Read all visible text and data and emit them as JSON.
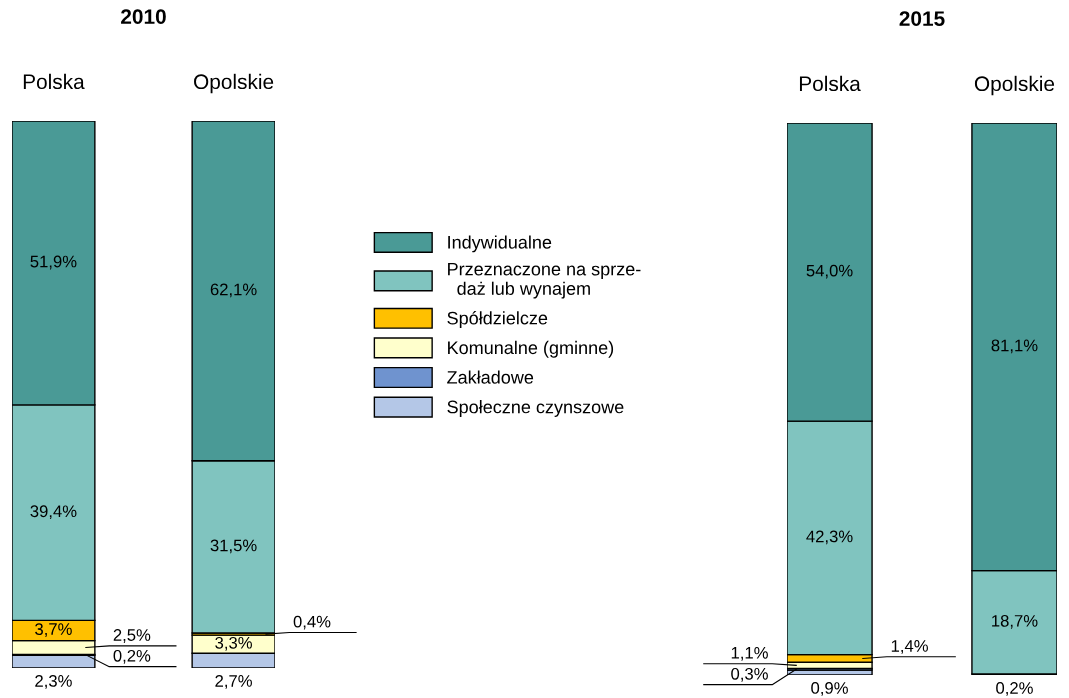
{
  "chart_data": [
    {
      "type": "bar",
      "stacked": true,
      "title": "2010",
      "categories": [
        "Polska",
        "Opolskie"
      ],
      "legend": "right",
      "series": [
        {
          "name": "Społeczne czynszowe",
          "color": "#b4c7e7",
          "values": [
            2.3,
            2.7
          ],
          "value_labels": [
            "2,3%",
            "2,7%"
          ]
        },
        {
          "name": "Zakładowe",
          "color": "#6f93cf",
          "values": [
            0.2,
            null
          ],
          "value_labels": [
            "0,2%",
            null
          ]
        },
        {
          "name": "Komunalne (gminne)",
          "color": "#ffffcc",
          "values": [
            2.5,
            3.3
          ],
          "value_labels": [
            "2,5%",
            "3,3%"
          ]
        },
        {
          "name": "Spółdzielcze",
          "color": "#ffc000",
          "values": [
            3.7,
            0.4
          ],
          "value_labels": [
            "3,7%",
            "0,4%"
          ]
        },
        {
          "name": "Przeznaczone na sprze-\n  daż lub wynajem",
          "color": "#80c4bf",
          "values": [
            39.4,
            31.5
          ],
          "value_labels": [
            "39,4%",
            "31,5%"
          ]
        },
        {
          "name": "Indywidualne",
          "color": "#4a9a96",
          "values": [
            51.9,
            62.1
          ],
          "value_labels": [
            "51,9%",
            "62,1%"
          ]
        }
      ]
    },
    {
      "type": "bar",
      "stacked": true,
      "title": "2015",
      "categories": [
        "Polska",
        "Opolskie"
      ],
      "series": [
        {
          "color": "#b4c7e7",
          "values": [
            0.9,
            0.2
          ],
          "value_labels": [
            "0,9%",
            "0,2%"
          ]
        },
        {
          "color": "#6f93cf",
          "values": [
            0.3,
            null
          ],
          "value_labels": [
            "0,3%",
            null
          ]
        },
        {
          "color": "#ffffcc",
          "values": [
            1.1,
            null
          ],
          "value_labels": [
            "1,1%",
            null
          ]
        },
        {
          "color": "#ffc000",
          "values": [
            1.4,
            null
          ],
          "value_labels": [
            "1,4%",
            null
          ]
        },
        {
          "color": "#80c4bf",
          "values": [
            42.3,
            18.7
          ],
          "value_labels": [
            "42,3%",
            "18,7%"
          ]
        },
        {
          "color": "#4a9a96",
          "values": [
            54.0,
            81.1
          ],
          "value_labels": [
            "54,0%",
            "81,1%"
          ]
        }
      ]
    }
  ]
}
